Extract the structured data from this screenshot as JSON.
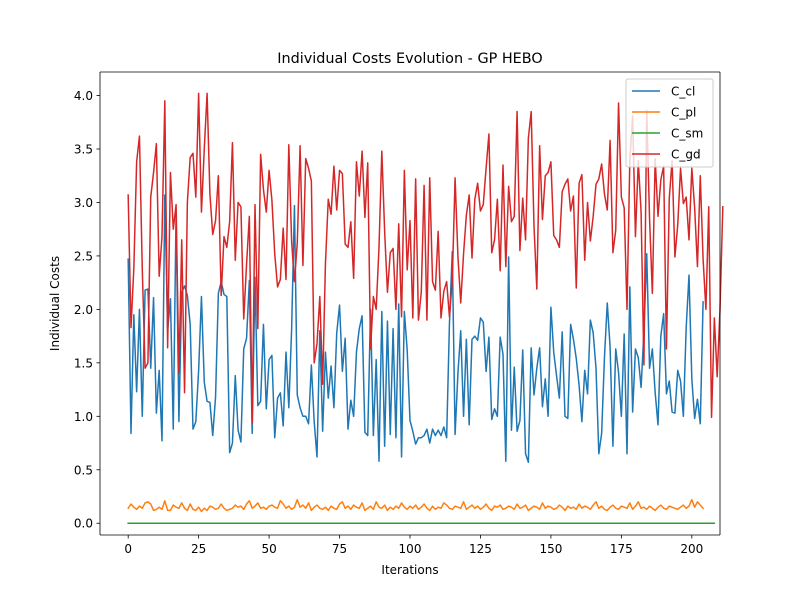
{
  "chart_data": {
    "type": "line",
    "title": "Individual Costs Evolution - GP HEBO",
    "xlabel": "Iterations",
    "ylabel": "Individual Costs",
    "xlim": [
      -10,
      210
    ],
    "ylim": [
      -0.11,
      4.22
    ],
    "x_ticks": [
      0,
      25,
      50,
      75,
      100,
      125,
      150,
      175,
      200
    ],
    "y_ticks": [
      0.0,
      0.5,
      1.0,
      1.5,
      2.0,
      2.5,
      3.0,
      3.5,
      4.0
    ],
    "grid": false,
    "legend_position": "top-right",
    "series": [
      {
        "name": "C_cl",
        "color": "#1f77b4",
        "values": [
          2.47,
          0.84,
          1.95,
          1.23,
          2.0,
          1.0,
          2.18,
          2.19,
          1.45,
          2.11,
          1.03,
          1.43,
          0.77,
          3.07,
          1.8,
          2.1,
          0.88,
          2.92,
          0.95,
          2.16,
          2.22,
          2.13,
          1.86,
          0.88,
          0.95,
          1.43,
          2.12,
          1.32,
          1.14,
          1.13,
          0.82,
          1.18,
          2.15,
          2.26,
          2.14,
          2.12,
          0.66,
          0.75,
          1.38,
          0.87,
          0.76,
          1.63,
          1.73,
          2.27,
          0.84,
          2.3,
          1.1,
          1.14,
          1.86,
          1.07,
          1.53,
          1.57,
          0.8,
          1.17,
          1.22,
          0.91,
          1.6,
          1.08,
          1.82,
          2.97,
          1.2,
          1.08,
          1.0,
          1.0,
          0.93,
          1.48,
          0.95,
          0.62,
          1.8,
          0.86,
          1.6,
          1.17,
          1.47,
          1.08,
          1.78,
          2.04,
          1.42,
          1.73,
          0.88,
          1.15,
          1.0,
          1.6,
          1.82,
          1.94,
          0.85,
          0.82,
          2.0,
          0.82,
          1.53,
          0.58,
          1.98,
          0.72,
          1.89,
          0.83,
          1.82,
          0.8,
          2.05,
          0.62,
          1.98,
          1.62,
          0.96,
          0.86,
          0.74,
          0.8,
          0.8,
          0.82,
          0.88,
          0.75,
          0.88,
          0.82,
          0.87,
          0.82,
          0.9,
          0.8,
          1.87,
          2.54,
          0.83,
          1.4,
          1.8,
          1.0,
          1.72,
          0.92,
          1.72,
          1.75,
          1.71,
          1.92,
          1.88,
          1.42,
          1.74,
          0.97,
          1.07,
          1.0,
          1.74,
          1.58,
          0.58,
          2.49,
          0.87,
          1.46,
          0.86,
          0.96,
          1.62,
          0.65,
          0.57,
          1.64,
          1.2,
          1.45,
          1.64,
          1.09,
          1.35,
          1.0,
          2.02,
          1.6,
          1.38,
          1.17,
          1.79,
          1.0,
          0.98,
          1.86,
          1.72,
          1.54,
          1.29,
          0.95,
          1.43,
          1.21,
          1.9,
          1.78,
          1.45,
          0.65,
          0.84,
          1.55,
          2.06,
          1.65,
          0.72,
          1.63,
          1.41,
          1.0,
          1.77,
          0.65,
          2.21,
          1.04,
          1.63,
          1.55,
          1.27,
          1.79,
          2.52,
          1.45,
          1.63,
          1.22,
          0.92,
          1.75,
          1.96,
          1.21,
          1.33,
          1.04,
          1.03,
          1.43,
          1.33,
          1.0,
          1.83,
          2.32,
          1.35,
          0.98,
          1.16,
          0.93,
          2.07
        ]
      },
      {
        "name": "C_pl",
        "color": "#ff7f0e",
        "values": [
          0.14,
          0.18,
          0.15,
          0.13,
          0.16,
          0.14,
          0.19,
          0.2,
          0.18,
          0.12,
          0.13,
          0.15,
          0.13,
          0.21,
          0.12,
          0.12,
          0.17,
          0.15,
          0.14,
          0.19,
          0.14,
          0.12,
          0.18,
          0.13,
          0.12,
          0.15,
          0.11,
          0.14,
          0.12,
          0.16,
          0.15,
          0.13,
          0.14,
          0.18,
          0.14,
          0.12,
          0.13,
          0.14,
          0.17,
          0.15,
          0.16,
          0.13,
          0.18,
          0.21,
          0.14,
          0.16,
          0.19,
          0.14,
          0.15,
          0.13,
          0.16,
          0.17,
          0.15,
          0.14,
          0.21,
          0.18,
          0.14,
          0.16,
          0.13,
          0.15,
          0.22,
          0.15,
          0.17,
          0.14,
          0.19,
          0.12,
          0.15,
          0.17,
          0.14,
          0.13,
          0.15,
          0.12,
          0.16,
          0.14,
          0.13,
          0.18,
          0.2,
          0.14,
          0.16,
          0.13,
          0.17,
          0.15,
          0.14,
          0.19,
          0.12,
          0.14,
          0.16,
          0.13,
          0.2,
          0.15,
          0.14,
          0.17,
          0.12,
          0.15,
          0.13,
          0.16,
          0.14,
          0.19,
          0.15,
          0.13,
          0.16,
          0.14,
          0.17,
          0.13,
          0.15,
          0.18,
          0.14,
          0.12,
          0.16,
          0.13,
          0.15,
          0.14,
          0.19,
          0.17,
          0.14,
          0.13,
          0.16,
          0.15,
          0.14,
          0.2,
          0.13,
          0.15,
          0.17,
          0.14,
          0.16,
          0.13,
          0.15,
          0.18,
          0.14,
          0.12,
          0.16,
          0.15,
          0.17,
          0.13,
          0.14,
          0.16,
          0.15,
          0.13,
          0.18,
          0.14,
          0.15,
          0.17,
          0.12,
          0.14,
          0.16,
          0.15,
          0.13,
          0.19,
          0.14,
          0.16,
          0.15,
          0.13,
          0.14,
          0.17,
          0.15,
          0.12,
          0.16,
          0.14,
          0.15,
          0.13,
          0.18,
          0.14,
          0.16,
          0.15,
          0.13,
          0.17,
          0.2,
          0.14,
          0.16,
          0.13,
          0.12,
          0.15,
          0.17,
          0.14,
          0.13,
          0.16,
          0.15,
          0.14,
          0.19,
          0.13,
          0.16,
          0.2,
          0.14,
          0.15,
          0.13,
          0.16,
          0.14,
          0.12,
          0.15,
          0.17,
          0.14,
          0.13,
          0.16,
          0.15,
          0.14,
          0.13,
          0.15,
          0.17,
          0.14,
          0.16,
          0.22,
          0.15,
          0.2,
          0.17,
          0.14
        ]
      },
      {
        "name": "C_sm",
        "color": "#2ca02c",
        "values": [
          0.0,
          0.0,
          0.0,
          0.0,
          0.0,
          0.0,
          0.0,
          0.0,
          0.0,
          0.0,
          0.0,
          0.0,
          0.0,
          0.0,
          0.0,
          0.0,
          0.0,
          0.0,
          0.0,
          0.0,
          0.0,
          0.0,
          0.0,
          0.0,
          0.0,
          0.0,
          0.0,
          0.0,
          0.0,
          0.0,
          0.0,
          0.0,
          0.0,
          0.0,
          0.0,
          0.0,
          0.0,
          0.0,
          0.0,
          0.0,
          0.0,
          0.0,
          0.0,
          0.0,
          0.0,
          0.0,
          0.0,
          0.0,
          0.0,
          0.0,
          0.0,
          0.0,
          0.0,
          0.0,
          0.0,
          0.0,
          0.0,
          0.0,
          0.0,
          0.0,
          0.0,
          0.0,
          0.0,
          0.0,
          0.0,
          0.0,
          0.0,
          0.0,
          0.0,
          0.0,
          0.0,
          0.0,
          0.0,
          0.0,
          0.0,
          0.0,
          0.0,
          0.0,
          0.0,
          0.0,
          0.0,
          0.0,
          0.0,
          0.0,
          0.0,
          0.0,
          0.0,
          0.0,
          0.0,
          0.0,
          0.0,
          0.0,
          0.0,
          0.0,
          0.0,
          0.0,
          0.0,
          0.0,
          0.0,
          0.0,
          0.0,
          0.0,
          0.0,
          0.0,
          0.0,
          0.0,
          0.0,
          0.0,
          0.0,
          0.0,
          0.0,
          0.0,
          0.0,
          0.0,
          0.0,
          0.0,
          0.0,
          0.0,
          0.0,
          0.0,
          0.0,
          0.0,
          0.0,
          0.0,
          0.0,
          0.0,
          0.0,
          0.0,
          0.0,
          0.0,
          0.0,
          0.0,
          0.0,
          0.0,
          0.0,
          0.0,
          0.0,
          0.0,
          0.0,
          0.0,
          0.0,
          0.0,
          0.0,
          0.0,
          0.0,
          0.0,
          0.0,
          0.0,
          0.0,
          0.0,
          0.0,
          0.0,
          0.0,
          0.0,
          0.0,
          0.0,
          0.0,
          0.0,
          0.0,
          0.0,
          0.0,
          0.0,
          0.0,
          0.0,
          0.0,
          0.0,
          0.0,
          0.0,
          0.0,
          0.0,
          0.0,
          0.0,
          0.0,
          0.0,
          0.0,
          0.0,
          0.0,
          0.0,
          0.0,
          0.0,
          0.0,
          0.0,
          0.0,
          0.0,
          0.0,
          0.0,
          0.0,
          0.0,
          0.0,
          0.0,
          0.0,
          0.0,
          0.0,
          0.0,
          0.0,
          0.0,
          0.0,
          0.0,
          0.0,
          0.0,
          0.0,
          0.0,
          0.0,
          0.0,
          0.0,
          0.0,
          0.0,
          0.0,
          0.0
        ]
      },
      {
        "name": "C_gd",
        "color": "#d62728",
        "values": [
          3.07,
          1.83,
          2.38,
          3.38,
          3.62,
          2.38,
          1.45,
          1.5,
          3.05,
          3.28,
          3.55,
          2.31,
          2.68,
          3.95,
          1.64,
          3.28,
          2.75,
          2.98,
          1.4,
          2.65,
          1.22,
          3.0,
          3.42,
          3.46,
          3.05,
          4.02,
          2.91,
          3.5,
          4.02,
          3.08,
          2.7,
          2.83,
          3.25,
          2.13,
          2.68,
          2.58,
          2.82,
          3.56,
          2.46,
          3.0,
          2.96,
          1.91,
          2.42,
          2.87,
          0.94,
          2.98,
          1.82,
          3.45,
          3.12,
          2.91,
          3.3,
          3.02,
          2.52,
          2.21,
          2.28,
          2.76,
          2.28,
          3.54,
          2.63,
          2.26,
          2.62,
          3.53,
          2.41,
          3.41,
          3.32,
          3.2,
          1.5,
          1.68,
          2.12,
          1.3,
          2.43,
          3.03,
          2.89,
          3.34,
          2.93,
          3.3,
          3.27,
          2.61,
          2.58,
          2.82,
          2.29,
          3.38,
          3.06,
          3.48,
          2.86,
          3.37,
          1.63,
          2.12,
          2.0,
          2.58,
          3.48,
          2.73,
          2.16,
          2.53,
          2.57,
          2.0,
          2.8,
          1.93,
          3.3,
          2.37,
          2.83,
          1.92,
          3.22,
          1.9,
          2.16,
          3.16,
          1.9,
          3.23,
          2.26,
          2.18,
          2.73,
          1.92,
          2.17,
          2.26,
          1.93,
          2.27,
          3.23,
          2.5,
          2.06,
          2.52,
          2.88,
          3.07,
          2.48,
          3.03,
          3.18,
          2.92,
          2.98,
          3.32,
          3.64,
          2.53,
          2.65,
          3.03,
          2.36,
          3.35,
          2.4,
          3.15,
          2.82,
          2.87,
          3.85,
          2.55,
          3.04,
          2.65,
          3.6,
          3.85,
          2.78,
          2.19,
          3.53,
          2.84,
          3.25,
          3.28,
          3.38,
          2.69,
          2.65,
          2.58,
          3.1,
          3.17,
          3.22,
          2.92,
          3.06,
          2.2,
          3.18,
          3.26,
          2.46,
          3.0,
          2.64,
          2.87,
          3.17,
          3.22,
          3.36,
          3.08,
          2.93,
          3.58,
          2.53,
          2.74,
          3.93,
          3.05,
          2.95,
          2.0,
          3.39,
          3.81,
          2.68,
          3.39,
          2.91,
          1.48,
          3.86,
          2.85,
          2.15,
          3.41,
          2.87,
          3.21,
          3.34,
          1.63,
          3.04,
          3.39,
          2.49,
          2.79,
          3.32,
          2.99,
          3.05,
          2.65,
          3.32,
          2.95,
          2.4,
          3.25,
          2.47,
          2.0,
          2.96,
          0.99,
          1.92,
          1.37,
          2.0,
          2.96
        ]
      }
    ]
  }
}
